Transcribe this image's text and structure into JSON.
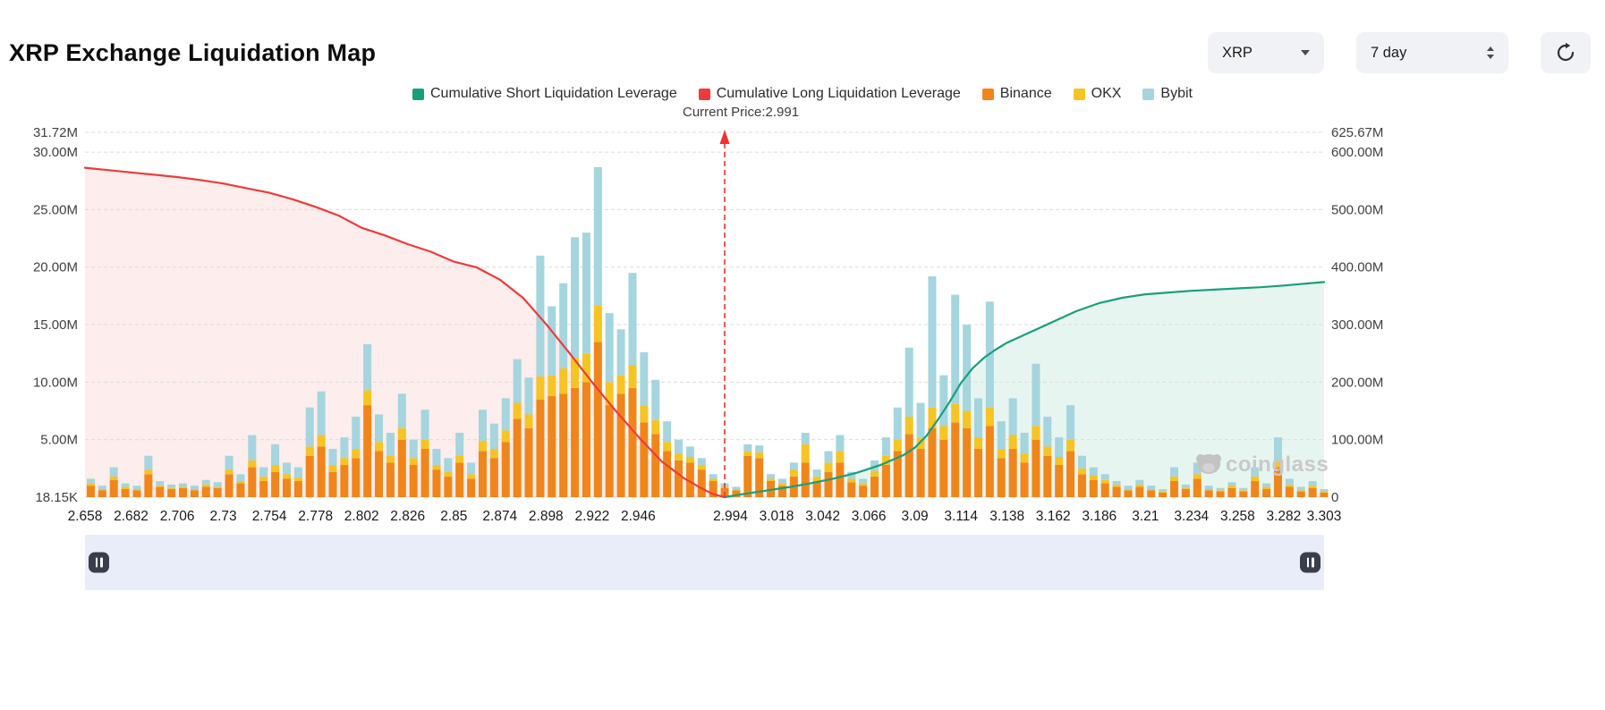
{
  "header": {
    "title": "XRP Exchange Liquidation Map",
    "coin_select": {
      "value": "XRP"
    },
    "timeframe_select": {
      "value": "7 day"
    }
  },
  "icons": {
    "coin_caret": "chevron-down",
    "timeframe_stepper": "up-down-triangles",
    "refresh": "circular-arrow",
    "navigator_handle": "pause-bars"
  },
  "watermark": "coinglass",
  "chart_data": {
    "type": "bar",
    "title": "XRP Exchange Liquidation Map",
    "grid": "horizontal-dashed",
    "legend_position": "top-center",
    "current_price": 2.991,
    "current_price_label": "Current Price:2.991",
    "current_price_color": "#f23030",
    "x_min": 2.658,
    "x_max": 3.303,
    "x_step": 0.006,
    "x_tick_labels": [
      "2.658",
      "2.682",
      "2.706",
      "2.73",
      "2.754",
      "2.778",
      "2.802",
      "2.826",
      "2.85",
      "2.874",
      "2.898",
      "2.922",
      "2.946",
      "2.994",
      "3.018",
      "3.042",
      "3.066",
      "3.09",
      "3.114",
      "3.138",
      "3.162",
      "3.186",
      "3.21",
      "3.234",
      "3.258",
      "3.282",
      "3.303"
    ],
    "left_axis": {
      "unit": "M",
      "max": 31.72,
      "ticks": [
        {
          "value": 0,
          "label": "18.15K"
        },
        {
          "value": 5,
          "label": "5.00M"
        },
        {
          "value": 10,
          "label": "10.00M"
        },
        {
          "value": 15,
          "label": "15.00M"
        },
        {
          "value": 20,
          "label": "20.00M"
        },
        {
          "value": 25,
          "label": "25.00M"
        },
        {
          "value": 30,
          "label": "30.00M"
        },
        {
          "value": 31.72,
          "label": "31.72M"
        }
      ]
    },
    "right_axis": {
      "unit": "M",
      "max": 625.67,
      "ticks": [
        {
          "value": 0,
          "label": "0"
        },
        {
          "value": 100,
          "label": "100.00M"
        },
        {
          "value": 200,
          "label": "200.00M"
        },
        {
          "value": 300,
          "label": "300.00M"
        },
        {
          "value": 400,
          "label": "400.00M"
        },
        {
          "value": 500,
          "label": "500.00M"
        },
        {
          "value": 600,
          "label": "600.00M"
        },
        {
          "value": 625.67,
          "label": "625.67M"
        }
      ]
    },
    "legend": [
      {
        "label": "Cumulative Short Liquidation Leverage",
        "color": "#17a07a"
      },
      {
        "label": "Cumulative Long Liquidation Leverage",
        "color": "#ee3b3b"
      },
      {
        "label": "Binance",
        "color": "#f0861a"
      },
      {
        "label": "OKX",
        "color": "#f6c423"
      },
      {
        "label": "Bybit",
        "color": "#a5d5de"
      }
    ],
    "series": [
      {
        "name": "Binance",
        "color": "#f0861a",
        "unit": "M",
        "values": [
          1.0,
          0.6,
          1.5,
          0.7,
          0.6,
          2.0,
          0.9,
          0.7,
          0.8,
          0.6,
          0.9,
          0.8,
          2.0,
          1.2,
          2.6,
          1.4,
          2.2,
          1.6,
          1.4,
          3.6,
          4.4,
          2.2,
          2.8,
          3.4,
          8.0,
          4.0,
          3.0,
          5.0,
          2.8,
          4.2,
          2.4,
          1.8,
          3.0,
          1.6,
          4.0,
          3.4,
          4.8,
          6.8,
          6.0,
          8.5,
          8.8,
          9.0,
          9.5,
          10.0,
          13.5,
          8.0,
          9.0,
          9.5,
          6.5,
          5.5,
          4.0,
          3.2,
          3.0,
          2.4,
          1.4,
          0.8,
          0.6,
          3.6,
          3.4,
          1.4,
          1.0,
          1.8,
          3.0,
          1.4,
          2.2,
          3.0,
          1.3,
          1.0,
          1.8,
          2.8,
          4.0,
          5.5,
          4.2,
          6.0,
          5.0,
          6.5,
          6.0,
          4.2,
          6.2,
          3.4,
          4.2,
          3.0,
          5.0,
          3.6,
          2.8,
          4.0,
          2.0,
          1.5,
          1.2,
          0.9,
          0.6,
          0.9,
          0.6,
          0.4,
          1.4,
          0.7,
          1.6,
          0.6,
          0.5,
          0.8,
          0.5,
          1.4,
          0.7,
          2.6,
          0.9,
          0.5,
          0.8,
          0.4
        ]
      },
      {
        "name": "OKX",
        "color": "#f6c423",
        "unit": "M",
        "values": [
          0.2,
          0.1,
          0.3,
          0.2,
          0.1,
          0.4,
          0.1,
          0.1,
          0.1,
          0.1,
          0.2,
          0.1,
          0.4,
          0.2,
          0.6,
          0.4,
          0.6,
          0.4,
          0.3,
          0.8,
          1.0,
          0.6,
          0.6,
          0.8,
          1.3,
          0.8,
          0.6,
          1.0,
          0.6,
          0.8,
          0.4,
          0.4,
          0.6,
          0.4,
          0.9,
          0.8,
          1.0,
          1.4,
          1.2,
          2.0,
          1.8,
          2.2,
          2.6,
          2.5,
          3.2,
          2.0,
          1.6,
          2.0,
          1.5,
          1.2,
          0.8,
          0.6,
          0.5,
          0.4,
          0.2,
          0.1,
          0.1,
          0.4,
          0.5,
          0.2,
          0.2,
          0.6,
          1.6,
          0.4,
          0.8,
          1.0,
          0.3,
          0.2,
          0.5,
          0.8,
          1.0,
          1.5,
          1.0,
          1.8,
          1.2,
          1.6,
          1.5,
          1.0,
          1.6,
          0.8,
          1.2,
          0.8,
          1.2,
          0.8,
          0.7,
          1.0,
          0.5,
          0.4,
          0.3,
          0.2,
          0.1,
          0.2,
          0.1,
          0.1,
          0.4,
          0.1,
          0.4,
          0.1,
          0.1,
          0.2,
          0.1,
          0.4,
          0.2,
          0.6,
          0.2,
          0.1,
          0.2,
          0.1
        ]
      },
      {
        "name": "Bybit",
        "color": "#a5d5de",
        "unit": "M",
        "values": [
          0.4,
          0.3,
          0.8,
          0.3,
          0.3,
          1.2,
          0.4,
          0.3,
          0.3,
          0.3,
          0.4,
          0.4,
          1.2,
          0.6,
          2.2,
          0.8,
          1.8,
          1.0,
          0.9,
          3.4,
          3.8,
          1.4,
          1.8,
          2.8,
          4.0,
          2.4,
          2.0,
          3.0,
          1.6,
          2.6,
          1.4,
          1.2,
          2.0,
          1.0,
          2.7,
          2.2,
          2.8,
          3.8,
          3.2,
          10.5,
          6.0,
          7.4,
          10.5,
          10.5,
          12.0,
          6.0,
          4.0,
          8.0,
          4.6,
          3.5,
          1.8,
          1.2,
          0.9,
          0.6,
          0.4,
          0.3,
          0.2,
          0.6,
          0.6,
          0.4,
          0.4,
          0.6,
          1.0,
          0.6,
          1.0,
          1.4,
          0.6,
          0.4,
          0.9,
          1.6,
          2.8,
          6.0,
          3.0,
          11.4,
          4.4,
          9.5,
          7.5,
          3.4,
          9.2,
          2.4,
          3.2,
          1.8,
          5.4,
          2.6,
          1.7,
          3.0,
          1.1,
          0.7,
          0.5,
          0.3,
          0.3,
          0.4,
          0.3,
          0.2,
          0.8,
          0.3,
          1.0,
          0.3,
          0.2,
          0.3,
          0.2,
          0.8,
          0.3,
          2.0,
          0.5,
          0.3,
          0.4,
          0.2
        ]
      }
    ],
    "lines": [
      {
        "name": "Cumulative Long Liquidation Leverage",
        "slug": "cumulative-long-line",
        "color": "#ee3b3b",
        "fill": "rgba(238,59,59,0.09)",
        "axis": "right",
        "unit": "M",
        "points": [
          [
            2.658,
            565
          ],
          [
            2.67,
            561
          ],
          [
            2.682,
            557
          ],
          [
            2.694,
            553
          ],
          [
            2.706,
            549
          ],
          [
            2.718,
            544
          ],
          [
            2.73,
            538
          ],
          [
            2.742,
            530
          ],
          [
            2.754,
            522
          ],
          [
            2.766,
            511
          ],
          [
            2.778,
            498
          ],
          [
            2.79,
            483
          ],
          [
            2.802,
            462
          ],
          [
            2.814,
            449
          ],
          [
            2.826,
            434
          ],
          [
            2.838,
            421
          ],
          [
            2.85,
            404
          ],
          [
            2.862,
            394
          ],
          [
            2.874,
            373
          ],
          [
            2.886,
            342
          ],
          [
            2.898,
            297
          ],
          [
            2.91,
            248
          ],
          [
            2.922,
            197
          ],
          [
            2.934,
            149
          ],
          [
            2.946,
            104
          ],
          [
            2.958,
            62
          ],
          [
            2.97,
            32
          ],
          [
            2.979,
            15
          ],
          [
            2.985,
            5
          ],
          [
            2.991,
            0
          ]
        ]
      },
      {
        "name": "Cumulative Short Liquidation Leverage",
        "slug": "cumulative-short-line",
        "color": "#17a07a",
        "fill": "rgba(23,160,122,0.10)",
        "axis": "right",
        "unit": "M",
        "points": [
          [
            2.991,
            0
          ],
          [
            3.0,
            5
          ],
          [
            3.012,
            11
          ],
          [
            3.024,
            17
          ],
          [
            3.036,
            24
          ],
          [
            3.048,
            32
          ],
          [
            3.06,
            42
          ],
          [
            3.072,
            55
          ],
          [
            3.084,
            72
          ],
          [
            3.09,
            85
          ],
          [
            3.096,
            105
          ],
          [
            3.102,
            133
          ],
          [
            3.108,
            163
          ],
          [
            3.114,
            196
          ],
          [
            3.12,
            221
          ],
          [
            3.126,
            239
          ],
          [
            3.132,
            253
          ],
          [
            3.138,
            265
          ],
          [
            3.15,
            283
          ],
          [
            3.162,
            301
          ],
          [
            3.174,
            319
          ],
          [
            3.186,
            333
          ],
          [
            3.198,
            342
          ],
          [
            3.21,
            348
          ],
          [
            3.222,
            351
          ],
          [
            3.234,
            354
          ],
          [
            3.246,
            356
          ],
          [
            3.258,
            358
          ],
          [
            3.27,
            360
          ],
          [
            3.282,
            363
          ],
          [
            3.303,
            369
          ]
        ]
      }
    ]
  }
}
